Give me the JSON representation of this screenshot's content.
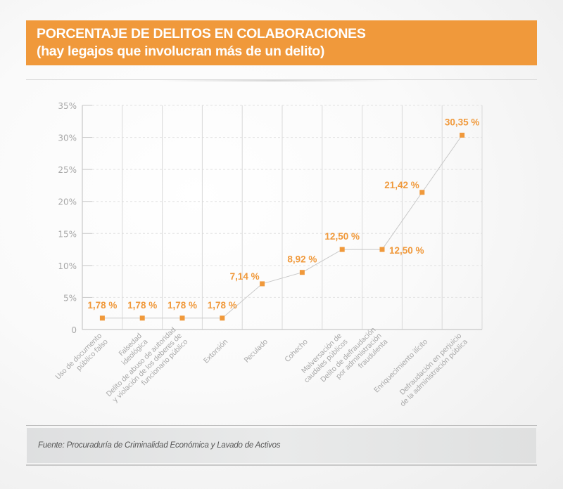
{
  "header": {
    "title_line1": "PORCENTAJE DE DELITOS EN COLABORACIONES",
    "title_line2": "(hay legajos que involucran más de un delito)"
  },
  "footer": {
    "source": "Fuente: Procuraduría de Criminalidad Económica y Lavado de Activos"
  },
  "colors": {
    "accent": "#f0993b",
    "axis": "#c8c8c8",
    "tick_text": "#a8a8a8",
    "line": "#c8c8c8"
  },
  "chart_data": {
    "type": "line",
    "title": "PORCENTAJE DE DELITOS EN COLABORACIONES (hay legajos que involucran más de un delito)",
    "xlabel": "",
    "ylabel": "",
    "ylim": [
      0,
      35
    ],
    "yticks": [
      0,
      5,
      10,
      15,
      20,
      25,
      30,
      35
    ],
    "ytick_labels": [
      "0",
      "5%",
      "10%",
      "15%",
      "20%",
      "25%",
      "30%",
      "35%"
    ],
    "grid": true,
    "legend": "none",
    "categories": [
      [
        "Uso de documento",
        "público falso"
      ],
      [
        "Falsedad",
        "ideológica"
      ],
      [
        "Delito de abuso de autoridad",
        "y violación de los deberes de",
        "funcionario público"
      ],
      [
        "Extorsión"
      ],
      [
        "Peculado"
      ],
      [
        "Cohecho"
      ],
      [
        "Malversación de",
        "caudales públicos"
      ],
      [
        "Delito de defraudación",
        "por administración",
        "fraudulenta"
      ],
      [
        "Enriquecimiento ilícito"
      ],
      [
        "Defraudación en perjuicio",
        "de la administración  pública"
      ]
    ],
    "series": [
      {
        "name": "Porcentaje",
        "values": [
          1.78,
          1.78,
          1.78,
          1.78,
          7.14,
          8.92,
          12.5,
          12.5,
          21.42,
          30.35
        ],
        "labels": [
          "1,78 %",
          "1,78 %",
          "1,78 %",
          "1,78 %",
          "7,14 %",
          "8,92 %",
          "12,50 %",
          "12,50 %",
          "21,42 %",
          "30,35 %"
        ],
        "label_positions": [
          "above",
          "above",
          "above",
          "above",
          "left",
          "above",
          "above",
          "right",
          "left",
          "above"
        ]
      }
    ]
  }
}
